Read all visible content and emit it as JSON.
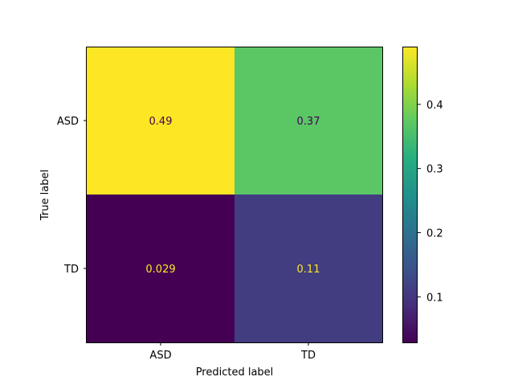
{
  "chart_data": {
    "type": "heatmap",
    "title": "",
    "xlabel": "Predicted label",
    "ylabel": "True label",
    "x_categories": [
      "ASD",
      "TD"
    ],
    "y_categories": [
      "ASD",
      "TD"
    ],
    "values": [
      [
        0.49,
        0.37
      ],
      [
        0.029,
        0.11
      ]
    ],
    "cell_labels": [
      [
        "0.49",
        "0.37"
      ],
      [
        "0.029",
        "0.11"
      ]
    ],
    "colormap": "viridis",
    "colorbar": {
      "range": [
        0.029,
        0.49
      ],
      "ticks": [
        0.1,
        0.2,
        0.3,
        0.4
      ],
      "tick_labels": [
        "0.1",
        "0.2",
        "0.3",
        "0.4"
      ]
    },
    "text_colors": {
      "dark_bg": "#fde725",
      "light_bg": "#440154"
    },
    "grid": false
  }
}
